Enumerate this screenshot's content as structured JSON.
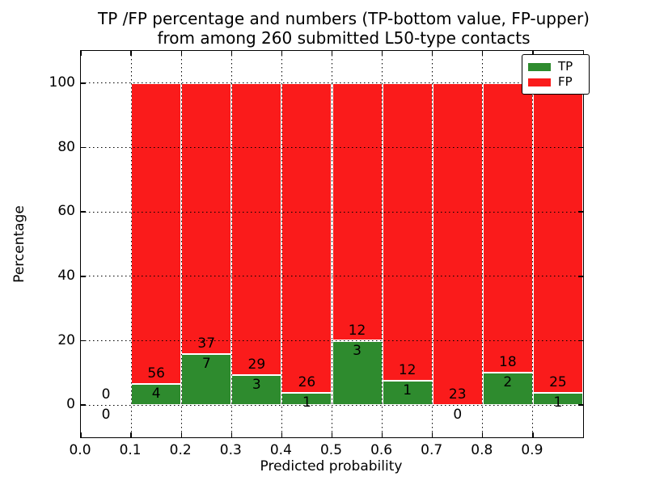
{
  "chart_data": {
    "type": "bar",
    "stacked": true,
    "title_line1": "TP /FP percentage and numbers (TP-bottom value, FP-upper)",
    "title_line2": "from among 260 submitted L50-type contacts",
    "xlabel": "Predicted probability",
    "ylabel": "Percentage",
    "xlim": [
      0.0,
      1.0
    ],
    "ylim": [
      -10,
      110
    ],
    "xticks": [
      "0.0",
      "0.1",
      "0.2",
      "0.3",
      "0.4",
      "0.5",
      "0.6",
      "0.7",
      "0.8",
      "0.9"
    ],
    "yticks": [
      "0",
      "20",
      "40",
      "60",
      "80",
      "100"
    ],
    "grid": "dotted, drawn above bars",
    "legend_position": "upper right",
    "legend": [
      {
        "label": "TP",
        "color": "#2e8b2e"
      },
      {
        "label": "FP",
        "color": "#fa1b1b"
      }
    ],
    "note": "green TP segment height = TP/(TP+FP)*100, red FP fills up to 100%; labels show raw counts (FP above TP-bar top, TP below it)",
    "bins": [
      {
        "x0": 0.0,
        "x1": 0.1,
        "tp": 0,
        "fp": 0
      },
      {
        "x0": 0.1,
        "x1": 0.2,
        "tp": 4,
        "fp": 56
      },
      {
        "x0": 0.2,
        "x1": 0.3,
        "tp": 7,
        "fp": 37
      },
      {
        "x0": 0.3,
        "x1": 0.4,
        "tp": 3,
        "fp": 29
      },
      {
        "x0": 0.4,
        "x1": 0.5,
        "tp": 1,
        "fp": 26
      },
      {
        "x0": 0.5,
        "x1": 0.6,
        "tp": 3,
        "fp": 12
      },
      {
        "x0": 0.6,
        "x1": 0.7,
        "tp": 1,
        "fp": 12
      },
      {
        "x0": 0.7,
        "x1": 0.8,
        "tp": 0,
        "fp": 23
      },
      {
        "x0": 0.8,
        "x1": 0.9,
        "tp": 2,
        "fp": 18
      },
      {
        "x0": 0.9,
        "x1": 1.0,
        "tp": 1,
        "fp": 25
      }
    ],
    "colors": {
      "tp_green": "#2e8b2e",
      "fp_red": "#fa1b1b",
      "bar_edge": "#ffffff",
      "text": "#000000"
    }
  }
}
